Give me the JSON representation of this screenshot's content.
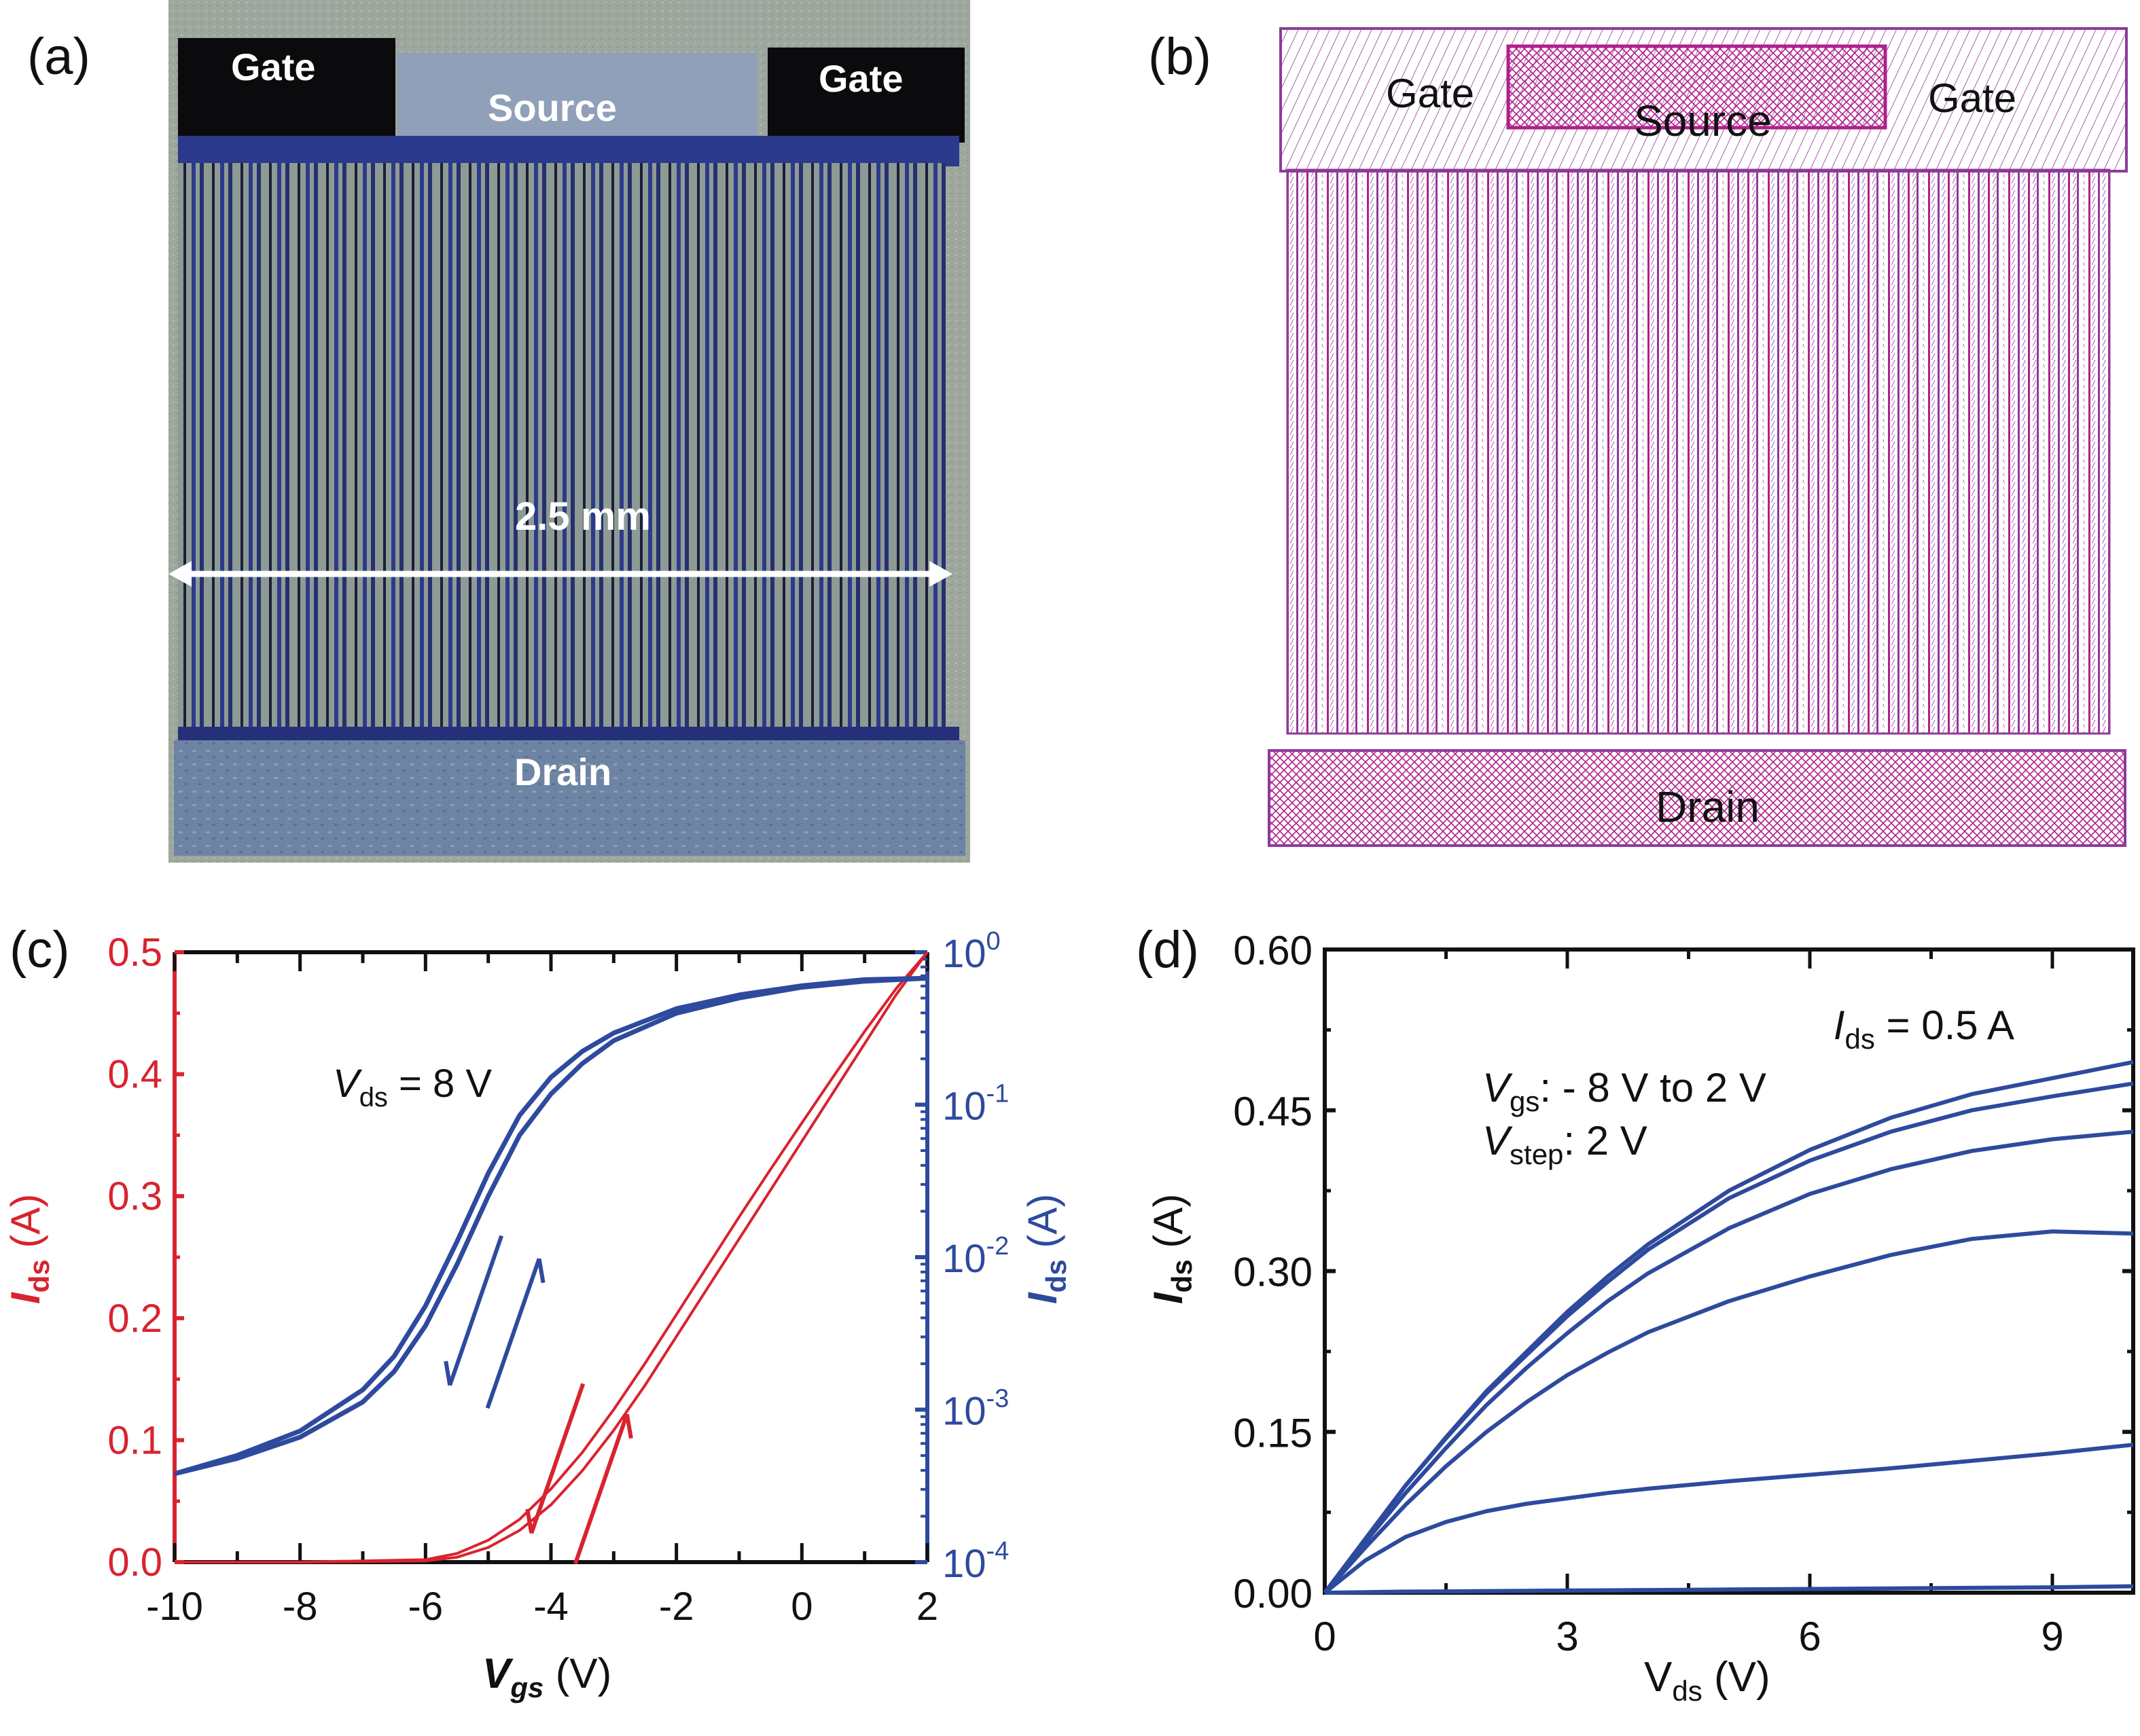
{
  "figure": {
    "panels": {
      "a": {
        "label": "(a)",
        "description": "Optical photograph of fabricated interdigitated transistor",
        "pads": {
          "gate_left": "Gate",
          "gate_right": "Gate",
          "source": "Source",
          "drain": "Drain"
        },
        "scale_bar": "2.5 mm",
        "colors": {
          "pad_dark": "#0b0b0d",
          "pad_source": "#8fa0b8",
          "finger_metal": "#2c3a8c",
          "background": "#9aa49a"
        }
      },
      "b": {
        "label": "(b)",
        "description": "Layout mask drawing of the device",
        "pads": {
          "gate_left": "Gate",
          "gate_right": "Gate",
          "source": "Source",
          "drain": "Drain"
        },
        "colors": {
          "line": "#b0208a",
          "line2": "#8e3a9a"
        }
      },
      "c": {
        "label": "(c)"
      },
      "d": {
        "label": "(d)"
      }
    }
  },
  "chart_data": [
    {
      "id": "c",
      "type": "line",
      "title": "",
      "annotation": {
        "var": "V",
        "sub": "ds",
        "rest": " = 8 V"
      },
      "xlabel": {
        "var": "V",
        "sub": "gs",
        "unit": " (V)"
      },
      "ylabel_left": {
        "var": "I",
        "sub": "ds",
        "unit": " (A)"
      },
      "ylabel_right": {
        "var": "I",
        "sub": "ds",
        "unit": " (A)"
      },
      "xlim": [
        -10,
        2
      ],
      "ylim_left": [
        0,
        0.5
      ],
      "ylim_right_log10": [
        -4,
        0
      ],
      "xticks": [
        -10,
        -8,
        -6,
        -4,
        -2,
        0,
        2
      ],
      "xtick_labels": [
        "-10",
        "-8",
        "-6",
        "-4",
        "-2",
        "0",
        "2"
      ],
      "yticks_left": [
        0.0,
        0.1,
        0.2,
        0.3,
        0.4,
        0.5
      ],
      "ytick_labels_left": [
        "0.0",
        "0.1",
        "0.2",
        "0.3",
        "0.4",
        "0.5"
      ],
      "yticks_right_exp": [
        0,
        -1,
        -2,
        -3,
        -4
      ],
      "ytick_labels_right": [
        "10",
        "10",
        "10",
        "10",
        "10"
      ],
      "ytick_exponents_right": [
        "0",
        "-1",
        "-2",
        "-3",
        "-4"
      ],
      "colors": {
        "linear": "#d9232e",
        "log": "#2e4a9e",
        "axis": "#111111"
      },
      "grid": false,
      "series": [
        {
          "name": "linear forward",
          "axis": "left",
          "color": "#d9232e",
          "x": [
            -10,
            -8,
            -6,
            -5.5,
            -5,
            -4.5,
            -4,
            -3.5,
            -3,
            -2.5,
            -2,
            -1.5,
            -1,
            -0.5,
            0,
            0.5,
            1,
            1.5,
            2
          ],
          "y": [
            0,
            0,
            0.001,
            0.004,
            0.012,
            0.026,
            0.047,
            0.075,
            0.108,
            0.145,
            0.185,
            0.225,
            0.265,
            0.305,
            0.345,
            0.385,
            0.425,
            0.465,
            0.5
          ]
        },
        {
          "name": "linear reverse",
          "axis": "left",
          "color": "#d9232e",
          "x": [
            -10,
            -8,
            -6,
            -5.5,
            -5,
            -4.5,
            -4,
            -3.5,
            -3,
            -2.5,
            -2,
            -1.5,
            -1,
            -0.5,
            0,
            0.5,
            1,
            1.5,
            2
          ],
          "y": [
            0,
            0,
            0.002,
            0.007,
            0.018,
            0.035,
            0.06,
            0.09,
            0.125,
            0.163,
            0.203,
            0.243,
            0.283,
            0.322,
            0.36,
            0.398,
            0.435,
            0.47,
            0.5
          ]
        },
        {
          "name": "log forward",
          "axis": "right",
          "color": "#2e4a9e",
          "x": [
            -10,
            -9,
            -8,
            -7,
            -6.5,
            -6,
            -5.5,
            -5,
            -4.5,
            -4,
            -3.5,
            -3,
            -2,
            -1,
            0,
            1,
            2
          ],
          "log10y": [
            -3.42,
            -3.32,
            -3.18,
            -2.95,
            -2.75,
            -2.45,
            -2.05,
            -1.6,
            -1.2,
            -0.93,
            -0.73,
            -0.58,
            -0.4,
            -0.3,
            -0.23,
            -0.19,
            -0.17
          ]
        },
        {
          "name": "log reverse",
          "axis": "right",
          "color": "#2e4a9e",
          "x": [
            -10,
            -9,
            -8,
            -7,
            -6.5,
            -6,
            -5.5,
            -5,
            -4.5,
            -4,
            -3.5,
            -3,
            -2,
            -1,
            0,
            1,
            2
          ],
          "log10y": [
            -3.42,
            -3.3,
            -3.14,
            -2.87,
            -2.65,
            -2.32,
            -1.9,
            -1.45,
            -1.07,
            -0.82,
            -0.65,
            -0.53,
            -0.37,
            -0.28,
            -0.22,
            -0.18,
            -0.17
          ]
        }
      ],
      "arrows": [
        {
          "color": "#2e4a9e",
          "direction": "down-left",
          "x": -5.2,
          "log10y": -2.35
        },
        {
          "color": "#2e4a9e",
          "direction": "up-right",
          "x": -4.6,
          "log10y": -2.5
        },
        {
          "color": "#d9232e",
          "direction": "down-left",
          "x": -3.9,
          "y": 0.085
        },
        {
          "color": "#d9232e",
          "direction": "up-right",
          "x": -3.2,
          "y": 0.06
        }
      ]
    },
    {
      "id": "d",
      "type": "line",
      "title": "",
      "annotations": [
        {
          "var": "I",
          "sub": "ds",
          "rest": " = 0.5 A"
        },
        {
          "var": "V",
          "sub": "gs",
          "rest": ": - 8 V to 2 V"
        },
        {
          "var": "V",
          "sub": "step",
          "rest": ": 2 V"
        }
      ],
      "xlabel": {
        "var": "V",
        "sub": "ds",
        "unit": " (V)"
      },
      "ylabel": {
        "var": "I",
        "sub": "ds",
        "unit": " (A)"
      },
      "xlim": [
        0,
        10
      ],
      "ylim": [
        0,
        0.6
      ],
      "xticks": [
        0,
        3,
        6,
        9
      ],
      "xtick_labels": [
        "0",
        "3",
        "6",
        "9"
      ],
      "yticks": [
        0.0,
        0.15,
        0.3,
        0.45,
        0.6
      ],
      "ytick_labels": [
        "0.00",
        "0.15",
        "0.30",
        "0.45",
        "0.60"
      ],
      "colors": {
        "line": "#2e4a9e",
        "axis": "#111111"
      },
      "grid": false,
      "x": [
        0,
        0.5,
        1,
        1.5,
        2,
        2.5,
        3,
        3.5,
        4,
        5,
        6,
        7,
        8,
        9,
        10
      ],
      "series": [
        {
          "name": "Vgs = 2 V",
          "y": [
            0,
            0.05,
            0.1,
            0.145,
            0.188,
            0.225,
            0.262,
            0.295,
            0.325,
            0.375,
            0.413,
            0.443,
            0.465,
            0.48,
            0.495
          ]
        },
        {
          "name": "Vgs = 0 V",
          "y": [
            0,
            0.05,
            0.1,
            0.144,
            0.186,
            0.222,
            0.258,
            0.29,
            0.32,
            0.368,
            0.403,
            0.43,
            0.45,
            0.463,
            0.475
          ]
        },
        {
          "name": "Vgs = -2 V",
          "y": [
            0,
            0.047,
            0.093,
            0.135,
            0.175,
            0.21,
            0.242,
            0.272,
            0.298,
            0.34,
            0.372,
            0.395,
            0.412,
            0.423,
            0.43
          ]
        },
        {
          "name": "Vgs = -4 V",
          "y": [
            0,
            0.042,
            0.082,
            0.118,
            0.15,
            0.178,
            0.203,
            0.224,
            0.243,
            0.272,
            0.295,
            0.315,
            0.33,
            0.337,
            0.335
          ]
        },
        {
          "name": "Vgs = -6 V",
          "y": [
            0,
            0.03,
            0.052,
            0.066,
            0.076,
            0.083,
            0.088,
            0.093,
            0.097,
            0.104,
            0.11,
            0.116,
            0.123,
            0.13,
            0.138
          ]
        },
        {
          "name": "Vgs = -8 V",
          "y": [
            0,
            0.0005,
            0.001,
            0.0012,
            0.0015,
            0.0018,
            0.002,
            0.0022,
            0.0025,
            0.003,
            0.0035,
            0.004,
            0.0045,
            0.005,
            0.006
          ]
        }
      ]
    }
  ]
}
